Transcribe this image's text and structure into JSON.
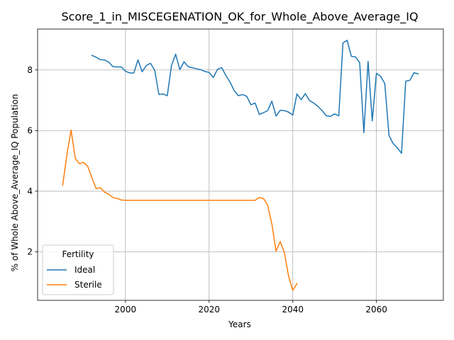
{
  "chart_data": {
    "type": "line",
    "title": "Score_1_in_MISCEGENATION_OK_for_Whole_Above_Average_IQ",
    "xlabel": "Years",
    "ylabel": "% of Whole Above_Average_IQ Population",
    "xlim": [
      1979,
      2076
    ],
    "ylim": [
      0.4,
      9.35
    ],
    "xticks": [
      2000,
      2020,
      2040,
      2060
    ],
    "yticks": [
      2,
      4,
      6,
      8
    ],
    "grid": true,
    "legend": {
      "title": "Fertility",
      "position": "bottom-left"
    },
    "series": [
      {
        "name": "Ideal",
        "color": "#1f77b4",
        "x": [
          1992,
          1993,
          1994,
          1995,
          1996,
          1997,
          1998,
          1999,
          2000,
          2001,
          2002,
          2003,
          2004,
          2005,
          2006,
          2007,
          2008,
          2009,
          2010,
          2011,
          2012,
          2013,
          2014,
          2015,
          2016,
          2017,
          2018,
          2019,
          2020,
          2021,
          2022,
          2023,
          2024,
          2025,
          2026,
          2027,
          2028,
          2029,
          2030,
          2031,
          2032,
          2033,
          2034,
          2035,
          2036,
          2037,
          2038,
          2039,
          2040,
          2041,
          2042,
          2043,
          2044,
          2045,
          2046,
          2047,
          2048,
          2049,
          2050,
          2051,
          2052,
          2053,
          2054,
          2055,
          2056,
          2057,
          2058,
          2059,
          2060,
          2061,
          2062,
          2063,
          2064,
          2065,
          2066,
          2067,
          2068,
          2069,
          2070
        ],
        "values": [
          8.48,
          8.42,
          8.34,
          8.33,
          8.26,
          8.11,
          8.1,
          8.1,
          7.96,
          7.9,
          7.9,
          8.33,
          7.94,
          8.15,
          8.22,
          7.99,
          7.19,
          7.21,
          7.15,
          8.14,
          8.52,
          8.01,
          8.27,
          8.11,
          8.07,
          8.04,
          8.01,
          7.95,
          7.92,
          7.75,
          8.02,
          8.08,
          7.82,
          7.6,
          7.32,
          7.15,
          7.19,
          7.13,
          6.85,
          6.91,
          6.53,
          6.59,
          6.66,
          6.97,
          6.48,
          6.67,
          6.66,
          6.61,
          6.51,
          7.21,
          7.02,
          7.22,
          6.99,
          6.91,
          6.8,
          6.66,
          6.49,
          6.47,
          6.55,
          6.49,
          8.89,
          8.98,
          8.45,
          8.43,
          8.24,
          5.93,
          8.28,
          6.32,
          7.89,
          7.79,
          7.55,
          5.84,
          5.57,
          5.43,
          5.25,
          7.63,
          7.66,
          7.91,
          7.87
        ]
      },
      {
        "name": "Sterile",
        "color": "#ff7f0e",
        "x": [
          1985,
          1986,
          1987,
          1988,
          1989,
          1990,
          1991,
          1992,
          1993,
          1994,
          1995,
          1996,
          1997,
          1998,
          1999,
          2000,
          2001,
          2002,
          2003,
          2004,
          2005,
          2006,
          2007,
          2008,
          2009,
          2010,
          2011,
          2012,
          2013,
          2014,
          2015,
          2016,
          2017,
          2018,
          2019,
          2020,
          2021,
          2022,
          2023,
          2024,
          2025,
          2026,
          2027,
          2028,
          2029,
          2030,
          2031,
          2032,
          2033,
          2034,
          2035,
          2036,
          2037,
          2038,
          2039,
          2040,
          2041
        ],
        "values": [
          4.2,
          5.2,
          6.02,
          5.08,
          4.91,
          4.95,
          4.82,
          4.43,
          4.08,
          4.12,
          3.97,
          3.9,
          3.79,
          3.76,
          3.71,
          3.7,
          3.7,
          3.7,
          3.7,
          3.7,
          3.7,
          3.7,
          3.7,
          3.7,
          3.7,
          3.7,
          3.7,
          3.7,
          3.7,
          3.7,
          3.7,
          3.7,
          3.7,
          3.7,
          3.7,
          3.7,
          3.7,
          3.7,
          3.7,
          3.7,
          3.7,
          3.7,
          3.7,
          3.7,
          3.7,
          3.7,
          3.7,
          3.79,
          3.76,
          3.54,
          2.92,
          2.02,
          2.34,
          1.97,
          1.2,
          0.73,
          0.95
        ]
      }
    ]
  }
}
